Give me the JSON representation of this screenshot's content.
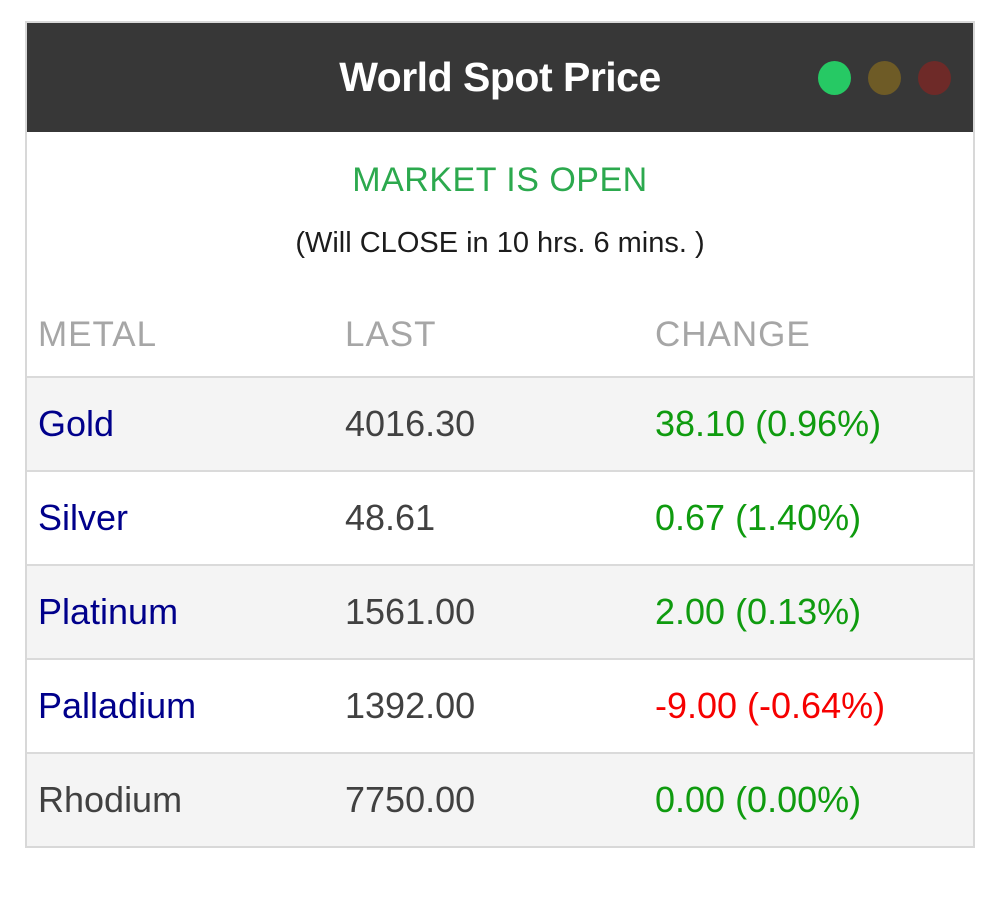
{
  "window": {
    "title": "World Spot Price",
    "status_lights": [
      {
        "name": "green",
        "color": "#26c964"
      },
      {
        "name": "yellow",
        "color": "#6e5b26"
      },
      {
        "name": "red",
        "color": "#6e2a28"
      }
    ],
    "header_bg": "#373737"
  },
  "status": {
    "market_status": "MARKET IS OPEN",
    "market_status_color": "#2ca94e",
    "countdown": "(Will CLOSE in 10 hrs. 6 mins. )"
  },
  "table": {
    "columns": [
      "METAL",
      "LAST",
      "CHANGE"
    ],
    "rows": [
      {
        "metal": "Gold",
        "last": "4016.30",
        "change": "38.10 (0.96%)",
        "direction": "up",
        "link": true
      },
      {
        "metal": "Silver",
        "last": "48.61",
        "change": "0.67 (1.40%)",
        "direction": "up",
        "link": true
      },
      {
        "metal": "Platinum",
        "last": "1561.00",
        "change": "2.00 (0.13%)",
        "direction": "up",
        "link": true
      },
      {
        "metal": "Palladium",
        "last": "1392.00",
        "change": "-9.00 (-0.64%)",
        "direction": "down",
        "link": true
      },
      {
        "metal": "Rhodium",
        "last": "7750.00",
        "change": "0.00 (0.00%)",
        "direction": "up",
        "link": false
      }
    ],
    "colors": {
      "up": "#0f9b0f",
      "down": "#f60000",
      "link": "#00008b",
      "plain": "#414141",
      "last": "#414141"
    }
  }
}
